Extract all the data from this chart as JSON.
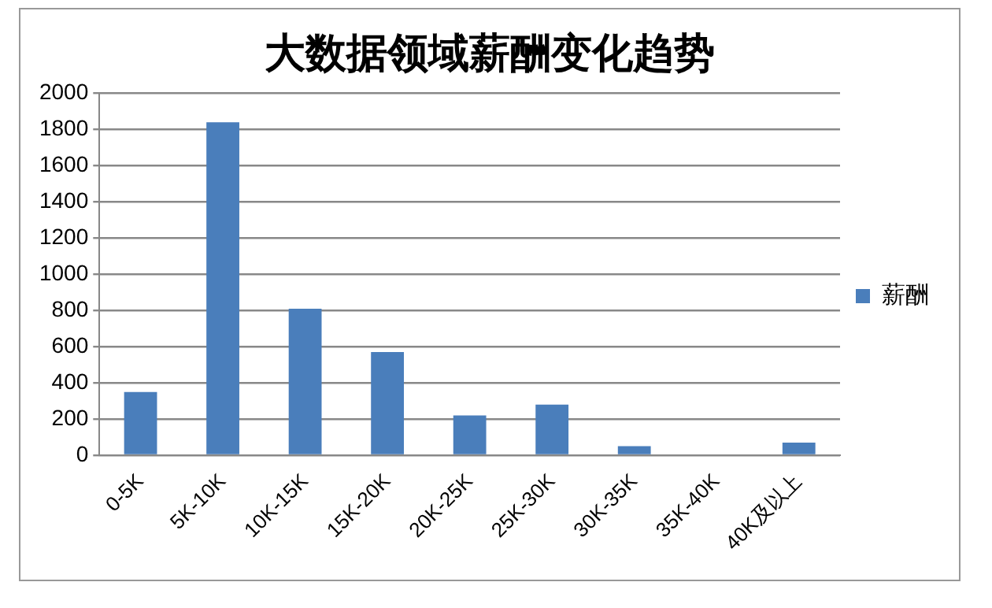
{
  "chart_data": {
    "type": "bar",
    "title": "大数据领域薪酬变化趋势",
    "categories": [
      "0-5K",
      "5K-10K",
      "10K-15K",
      "15K-20K",
      "20K-25K",
      "25K-30K",
      "30K-35K",
      "35K-40K",
      "40K及以上"
    ],
    "series": [
      {
        "name": "薪酬",
        "color": "#4a7ebb",
        "values": [
          350,
          1840,
          810,
          570,
          220,
          280,
          50,
          0,
          70
        ]
      }
    ],
    "ylim": [
      0,
      2000
    ],
    "yticks": [
      0,
      200,
      400,
      600,
      800,
      1000,
      1200,
      1400,
      1600,
      1800,
      2000
    ],
    "grid": "y",
    "legend": "right"
  }
}
